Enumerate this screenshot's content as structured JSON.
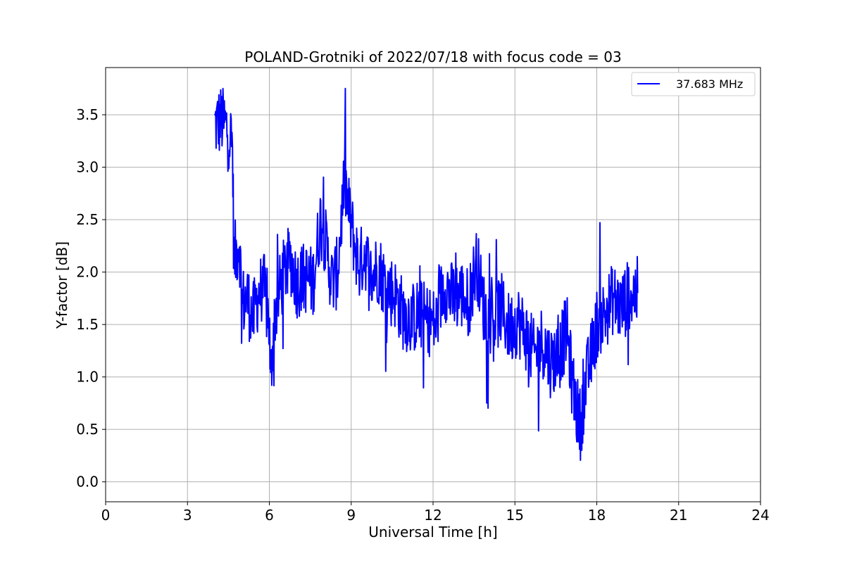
{
  "chart_data": {
    "type": "line",
    "title": "POLAND-Grotniki of 2022/07/18 with focus code = 03",
    "xlabel": "Universal Time [h]",
    "ylabel": "Y-factor [dB]",
    "xlim": [
      0,
      24
    ],
    "ylim": [
      -0.19,
      3.95
    ],
    "xticks": [
      0,
      3,
      6,
      9,
      12,
      15,
      18,
      21,
      24
    ],
    "yticks": [
      0.0,
      0.5,
      1.0,
      1.5,
      2.0,
      2.5,
      3.0,
      3.5
    ],
    "ytick_labels": [
      "0.0",
      "0.5",
      "1.0",
      "1.5",
      "2.0",
      "2.5",
      "3.0",
      "3.5"
    ],
    "grid": true,
    "legend_position": "top-right",
    "series": [
      {
        "name": "37.683 MHz",
        "color": "#0000ff",
        "x": [
          4.0,
          4.25,
          4.5,
          4.65,
          4.7,
          4.8,
          4.9,
          5.0,
          5.2,
          5.4,
          5.6,
          5.8,
          6.0,
          6.05,
          6.1,
          6.2,
          6.4,
          6.6,
          6.8,
          7.0,
          7.3,
          7.6,
          7.9,
          8.1,
          8.3,
          8.5,
          8.75,
          8.9,
          9.1,
          9.3,
          9.5,
          9.7,
          10.0,
          10.3,
          10.6,
          10.9,
          11.2,
          11.5,
          11.8,
          12.1,
          12.4,
          12.7,
          13.0,
          13.3,
          13.6,
          13.9,
          14.2,
          14.5,
          14.8,
          15.1,
          15.4,
          15.7,
          16.0,
          16.3,
          16.6,
          16.9,
          17.1,
          17.3,
          17.4,
          17.6,
          17.8,
          18.0,
          18.3,
          18.6,
          18.9,
          19.2,
          19.5
        ],
        "y": [
          3.4,
          3.45,
          3.35,
          3.2,
          2.1,
          2.2,
          2.3,
          1.7,
          1.75,
          1.55,
          1.8,
          1.85,
          1.5,
          0.9,
          1.25,
          1.6,
          1.85,
          2.05,
          2.1,
          1.9,
          1.95,
          1.9,
          2.55,
          2.2,
          1.9,
          2.0,
          2.9,
          2.6,
          2.3,
          2.05,
          2.2,
          1.95,
          2.05,
          1.85,
          1.8,
          1.6,
          1.55,
          1.6,
          1.55,
          1.5,
          1.9,
          1.75,
          1.8,
          1.7,
          2.1,
          1.6,
          1.55,
          1.65,
          1.45,
          1.55,
          1.4,
          1.2,
          1.35,
          1.15,
          1.2,
          1.45,
          0.95,
          0.65,
          0.55,
          0.95,
          1.2,
          1.5,
          1.6,
          1.75,
          1.65,
          1.8,
          1.8
        ]
      }
    ]
  }
}
